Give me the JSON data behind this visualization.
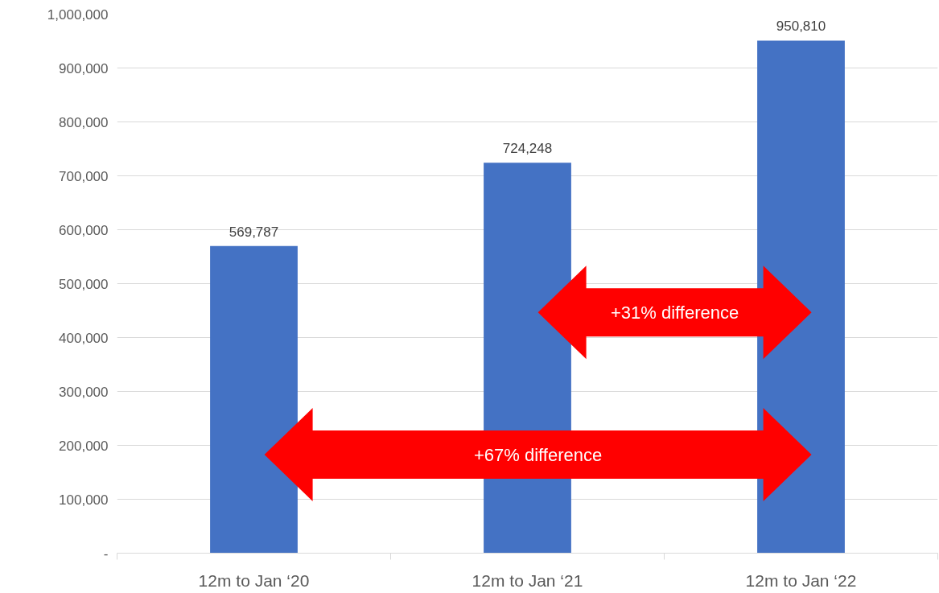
{
  "chart_data": {
    "type": "bar",
    "categories": [
      "12m to Jan ‘20",
      "12m to Jan ‘21",
      "12m to Jan ‘22"
    ],
    "values": [
      569787,
      724248,
      950810
    ],
    "color": "#4472c4",
    "ylim": [
      0,
      1000000
    ],
    "yticks": [
      {
        "value": 0,
        "label": "-"
      },
      {
        "value": 100000,
        "label": "100,000"
      },
      {
        "value": 200000,
        "label": "200,000"
      },
      {
        "value": 300000,
        "label": "300,000"
      },
      {
        "value": 400000,
        "label": "400,000"
      },
      {
        "value": 500000,
        "label": "500,000"
      },
      {
        "value": 600000,
        "label": "600,000"
      },
      {
        "value": 700000,
        "label": "700,000"
      },
      {
        "value": 800000,
        "label": "800,000"
      },
      {
        "value": 900000,
        "label": "900,000"
      },
      {
        "value": 1000000,
        "label": "1,000,000"
      }
    ],
    "value_labels": [
      "569,787",
      "724,248",
      "950,810"
    ],
    "grid": "y",
    "annotations": [
      "+31% difference",
      "+67% difference"
    ]
  }
}
